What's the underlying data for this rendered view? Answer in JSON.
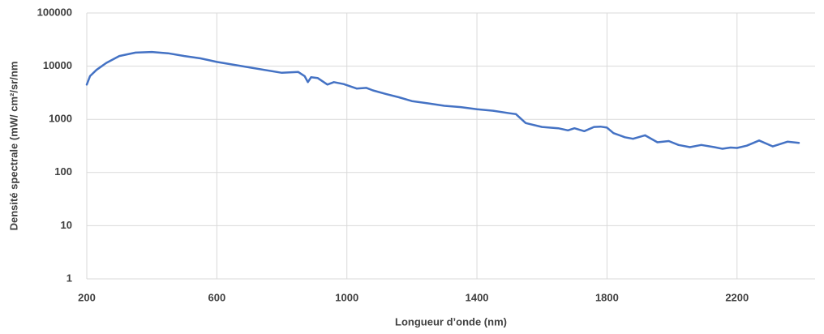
{
  "chart_data": {
    "type": "line",
    "x_label": "Longueur d’onde (nm)",
    "y_label": "Densité spectrale (mW/ cm²/sr/nm",
    "x": [
      200,
      210,
      230,
      260,
      300,
      350,
      400,
      450,
      500,
      550,
      600,
      700,
      800,
      850,
      870,
      880,
      890,
      910,
      940,
      960,
      990,
      1030,
      1060,
      1080,
      1120,
      1160,
      1200,
      1250,
      1300,
      1350,
      1400,
      1450,
      1500,
      1520,
      1550,
      1600,
      1650,
      1680,
      1700,
      1730,
      1760,
      1780,
      1800,
      1820,
      1855,
      1880,
      1917,
      1955,
      1990,
      2020,
      2055,
      2090,
      2130,
      2155,
      2180,
      2200,
      2230,
      2268,
      2310,
      2355,
      2390
    ],
    "values": [
      4500,
      6500,
      8500,
      11500,
      15500,
      18000,
      18500,
      17500,
      15500,
      14000,
      12000,
      9500,
      7500,
      7800,
      6500,
      5000,
      6200,
      6000,
      4500,
      5000,
      4600,
      3800,
      3900,
      3500,
      3000,
      2600,
      2200,
      2000,
      1800,
      1700,
      1550,
      1450,
      1300,
      1250,
      850,
      720,
      680,
      620,
      680,
      600,
      720,
      730,
      700,
      550,
      460,
      430,
      500,
      370,
      390,
      330,
      300,
      330,
      300,
      280,
      295,
      290,
      320,
      400,
      310,
      380,
      360
    ],
    "color": "#4472c4",
    "xlim": [
      200,
      2440
    ],
    "xticks": [
      200,
      600,
      1000,
      1400,
      1800,
      2200
    ],
    "ylim": [
      1,
      100000
    ],
    "yticks": [
      1,
      10,
      100,
      1000,
      10000,
      100000
    ],
    "ylog": true,
    "grid": true
  }
}
